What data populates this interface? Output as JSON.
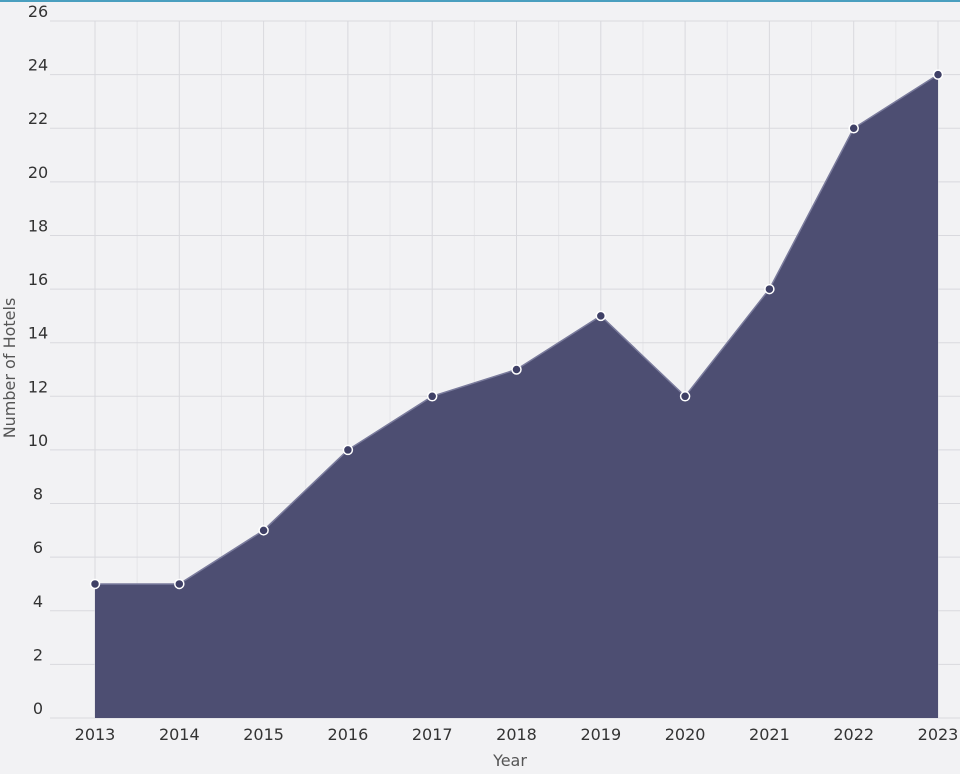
{
  "chart_data": {
    "type": "area",
    "x": [
      "2013",
      "2014",
      "2015",
      "2016",
      "2017",
      "2018",
      "2019",
      "2020",
      "2021",
      "2022",
      "2023"
    ],
    "series": [
      {
        "values": [
          5,
          5,
          7,
          10,
          12,
          13,
          15,
          12,
          16,
          22,
          24
        ]
      }
    ],
    "xlabel": "Year",
    "ylabel": "Number of Hotels",
    "ylim": [
      0,
      26
    ],
    "yticks": [
      0,
      2,
      4,
      6,
      8,
      10,
      12,
      14,
      16,
      18,
      20,
      22,
      24,
      26
    ],
    "grid": true,
    "colors": {
      "fill": "#4d4e72",
      "marker_fill": "#3f4066",
      "marker_stroke": "#ffffff",
      "accent": "#4a9fbf"
    }
  }
}
